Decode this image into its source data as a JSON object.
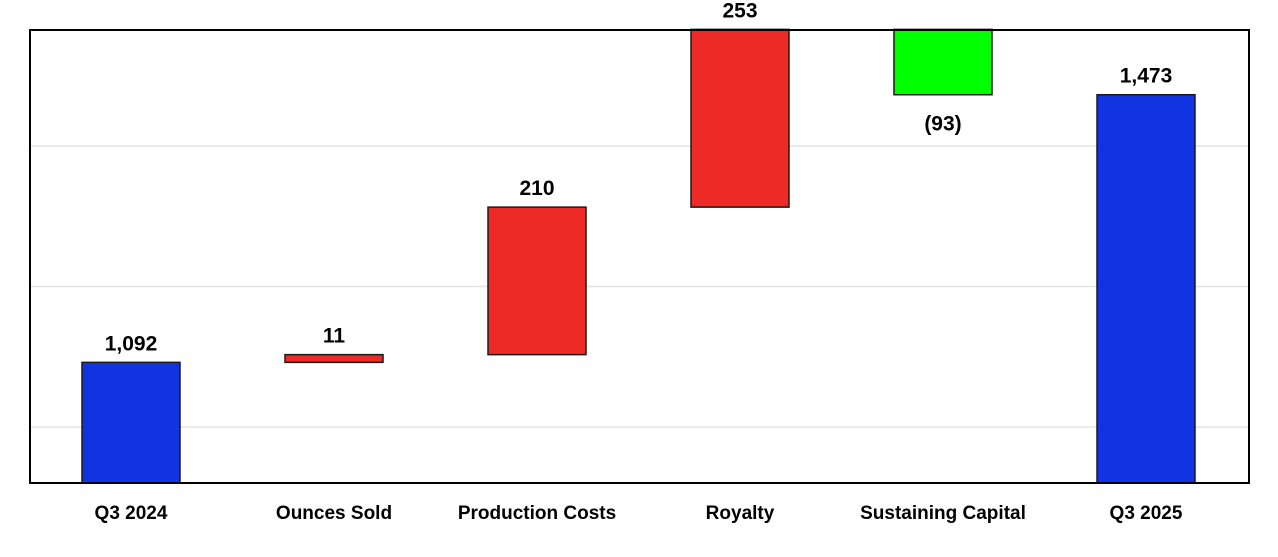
{
  "chart_data": {
    "type": "bar",
    "subtype": "waterfall",
    "title": "",
    "xlabel": "",
    "ylabel": "",
    "categories": [
      "Q3 2024",
      "Ounces Sold",
      "Production Costs",
      "Royalty",
      "Sustaining Capital",
      "Q3 2025"
    ],
    "values": [
      1092,
      11,
      210,
      253,
      -93,
      1473
    ],
    "value_labels": [
      "1,092",
      "11",
      "210",
      "253",
      "(93)",
      "1,473"
    ],
    "kinds": [
      "total",
      "delta",
      "delta",
      "delta",
      "delta",
      "total"
    ],
    "ylim": [
      900,
      1550
    ],
    "yticks": [
      1000,
      1200,
      1400
    ],
    "grid": true,
    "legend": "none",
    "colors": {
      "total": "#1233e0",
      "increase": "#ee2a26",
      "decrease": "#00ff00",
      "frame": "#000000",
      "grid": "#e3e3e3"
    }
  }
}
